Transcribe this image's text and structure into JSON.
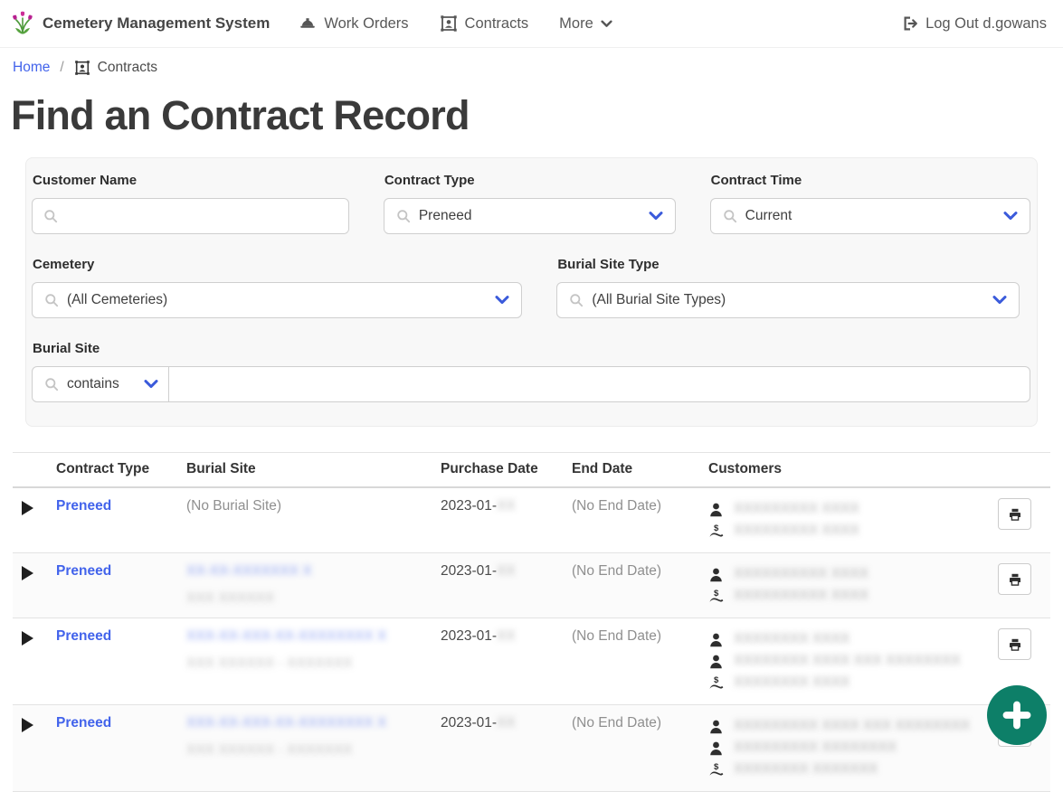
{
  "navbar": {
    "brand": "Cemetery Management System",
    "work_orders": "Work Orders",
    "contracts": "Contracts",
    "more": "More",
    "logout": "Log Out d.gowans"
  },
  "breadcrumb": {
    "home": "Home",
    "separator": "/",
    "current": "Contracts"
  },
  "page_title": "Find an Contract Record",
  "filters": {
    "customer_name_label": "Customer Name",
    "customer_name_value": "",
    "contract_type_label": "Contract Type",
    "contract_type_value": "Preneed",
    "contract_time_label": "Contract Time",
    "contract_time_value": "Current",
    "cemetery_label": "Cemetery",
    "cemetery_value": "(All Cemeteries)",
    "burial_site_type_label": "Burial Site Type",
    "burial_site_type_value": "(All Burial Site Types)",
    "burial_site_label": "Burial Site",
    "burial_site_operator": "contains",
    "burial_site_value": ""
  },
  "table": {
    "headers": {
      "contract_type": "Contract Type",
      "burial_site": "Burial Site",
      "purchase_date": "Purchase Date",
      "end_date": "End Date",
      "customers": "Customers"
    },
    "rows": [
      {
        "contract_type": "Preneed",
        "burial_site_text": "(No Burial Site)",
        "burial_site_link_redacted": "",
        "burial_site_sub_redacted": "",
        "purchase_date_visible": "2023-01-",
        "purchase_date_day_redacted": "XX",
        "end_date": "(No End Date)",
        "customers": [
          {
            "icon": "person-icon",
            "name_redacted": "XXXXXXXXX XXXX"
          },
          {
            "icon": "payer-icon",
            "name_redacted": "XXXXXXXXX XXXX"
          }
        ]
      },
      {
        "contract_type": "Preneed",
        "burial_site_text": "",
        "burial_site_link_redacted": "XX-XX-XXXXXXX X",
        "burial_site_sub_redacted": "XXX XXXXXX",
        "purchase_date_visible": "2023-01-",
        "purchase_date_day_redacted": "XX",
        "end_date": "(No End Date)",
        "customers": [
          {
            "icon": "person-icon",
            "name_redacted": "XXXXXXXXXX XXXX"
          },
          {
            "icon": "payer-icon",
            "name_redacted": "XXXXXXXXXX XXXX"
          }
        ]
      },
      {
        "contract_type": "Preneed",
        "burial_site_text": "",
        "burial_site_link_redacted": "XXX-XX-XXX-XX-XXXXXXXX X",
        "burial_site_sub_redacted": "XXX XXXXXX - XXXXXXX",
        "purchase_date_visible": "2023-01-",
        "purchase_date_day_redacted": "XX",
        "end_date": "(No End Date)",
        "customers": [
          {
            "icon": "person-icon",
            "name_redacted": "XXXXXXXX XXXX"
          },
          {
            "icon": "person-icon",
            "name_redacted": "XXXXXXXX XXXX XXX XXXXXXXX"
          },
          {
            "icon": "payer-icon",
            "name_redacted": "XXXXXXXX XXXX"
          }
        ]
      },
      {
        "contract_type": "Preneed",
        "burial_site_text": "",
        "burial_site_link_redacted": "XXX-XX-XXX-XX-XXXXXXXX X",
        "burial_site_sub_redacted": "XXX XXXXXX - XXXXXXX",
        "purchase_date_visible": "2023-01-",
        "purchase_date_day_redacted": "XX",
        "end_date": "(No End Date)",
        "customers": [
          {
            "icon": "person-icon",
            "name_redacted": "XXXXXXXXX XXXX XXX XXXXXXXX"
          },
          {
            "icon": "person-icon",
            "name_redacted": "XXXXXXXXX XXXXXXXX"
          },
          {
            "icon": "payer-icon",
            "name_redacted": "XXXXXXXX XXXXXXX"
          }
        ]
      }
    ]
  },
  "fab": {
    "label": "add-contract"
  },
  "icons": {
    "logo": "tulips-icon",
    "work_orders": "hard-hat-icon",
    "contracts": "contact-badge-icon",
    "more": "chevron-down-icon",
    "logout": "sign-out-icon",
    "search": "search-icon",
    "expand": "expand-row-icon",
    "person": "person-icon",
    "payer": "payer-hand-dollar-icon",
    "print": "printer-icon",
    "fab": "plus-icon"
  },
  "colors": {
    "accent_link": "#4263eb",
    "dropdown_chevron": "#3b5bdb",
    "fab": "#0d7f68",
    "nav_text": "#585858",
    "muted_text": "#8f8f8f"
  }
}
